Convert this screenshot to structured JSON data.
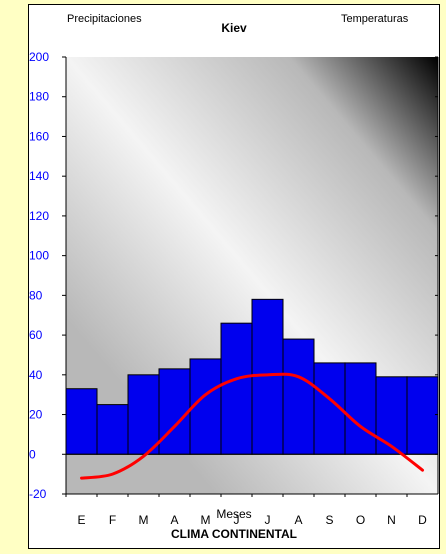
{
  "header": {
    "left_label": "Precipitaciones",
    "right_label": "Temperaturas"
  },
  "chart_data": {
    "type": "bar",
    "title": "Kiev",
    "xlabel": "Meses",
    "caption": "CLIMA CONTINENTAL",
    "categories": [
      "E",
      "F",
      "M",
      "A",
      "M",
      "J",
      "J",
      "A",
      "S",
      "O",
      "N",
      "D"
    ],
    "series": [
      {
        "axis": "left",
        "kind": "bar",
        "color": "#0000ee",
        "values": [
          33,
          25,
          40,
          43,
          48,
          66,
          78,
          58,
          46,
          46,
          39,
          39
        ]
      },
      {
        "axis": "right",
        "kind": "line",
        "color": "#ff0000",
        "values": [
          -6,
          -5,
          -0.5,
          7,
          15,
          19,
          20,
          19.5,
          14,
          7,
          2,
          -4
        ]
      }
    ],
    "left_axis": {
      "ylim": [
        -20,
        200
      ],
      "ticks": [
        -20,
        0,
        20,
        40,
        60,
        80,
        100,
        120,
        140,
        160,
        180,
        200
      ],
      "color": "#0000ff"
    },
    "right_axis": {
      "ylim": [
        -10,
        100
      ],
      "ticks": [
        -10,
        0,
        10,
        20,
        30,
        40,
        50,
        60,
        70,
        80,
        90,
        100
      ],
      "color": "#ff0000"
    },
    "plot_background": {
      "light": "#f4f4f4",
      "mid": "#b8b8b8",
      "dark": "#000000"
    },
    "grid": false
  }
}
